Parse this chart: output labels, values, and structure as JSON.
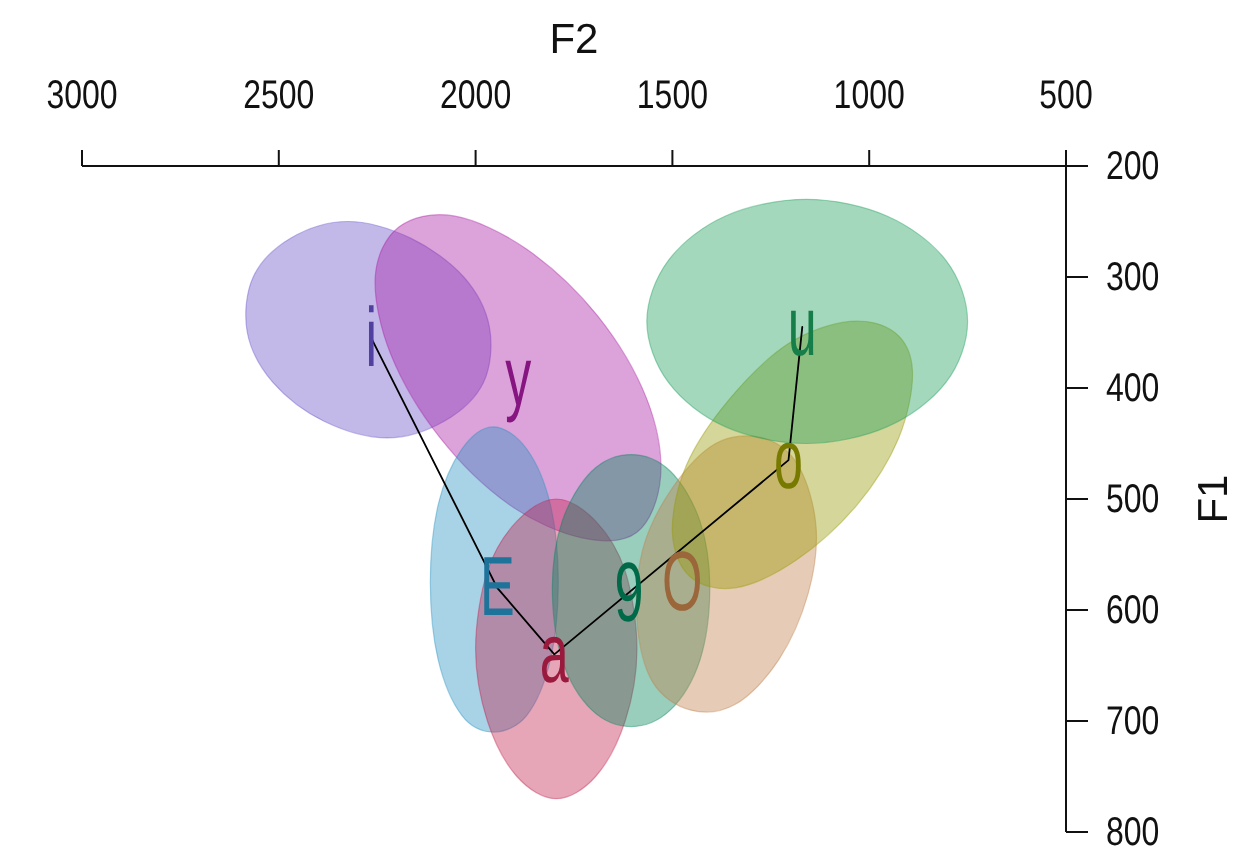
{
  "chart_data": {
    "type": "area",
    "xlabel": "F2",
    "ylabel": "F1",
    "xlim": [
      3000,
      500
    ],
    "xticks": [
      3000,
      2500,
      2000,
      1500,
      1000,
      500
    ],
    "ylim": [
      800,
      200
    ],
    "yticks": [
      200,
      300,
      400,
      500,
      600,
      700,
      800
    ],
    "series": [
      {
        "color": "#6650c8",
        "x": [
          1980,
          2080,
          2225,
          2385,
          2515,
          2580,
          2565,
          2470,
          2325,
          2165,
          2030,
          1965
        ],
        "values": [
          395,
          430,
          445,
          430,
          395,
          350,
          300,
          265,
          250,
          265,
          300,
          345
        ]
      },
      {
        "color": "#a81aa3",
        "x": [
          1590,
          1730,
          1915,
          2090,
          2215,
          2255,
          2195,
          2055,
          1870,
          1690,
          1565,
          1530
        ],
        "values": [
          530,
          535,
          505,
          445,
          370,
          300,
          255,
          245,
          275,
          335,
          410,
          480
        ]
      },
      {
        "color": "#2590c0",
        "x": [
          1790,
          1810,
          1870,
          1955,
          2035,
          2095,
          2115,
          2095,
          2035,
          1955,
          1870,
          1810
        ],
        "values": [
          575,
          645,
          695,
          710,
          695,
          645,
          575,
          505,
          455,
          435,
          455,
          505
        ]
      },
      {
        "color": "#c0204e",
        "x": [
          1590,
          1620,
          1695,
          1795,
          1895,
          1970,
          2000,
          1970,
          1895,
          1795,
          1695,
          1620
        ],
        "values": [
          635,
          700,
          750,
          770,
          750,
          700,
          635,
          565,
          520,
          500,
          520,
          565
        ]
      },
      {
        "color": "#00845a",
        "x": [
          1405,
          1430,
          1505,
          1605,
          1705,
          1780,
          1805,
          1780,
          1705,
          1605,
          1505,
          1430
        ],
        "values": [
          580,
          645,
          690,
          705,
          690,
          645,
          580,
          520,
          475,
          460,
          475,
          520
        ]
      },
      {
        "color": "#c08048",
        "x": [
          1270,
          1180,
          1135,
          1155,
          1230,
          1340,
          1455,
          1550,
          1590,
          1575,
          1500,
          1390
        ],
        "values": [
          445,
          470,
          525,
          585,
          645,
          685,
          690,
          665,
          610,
          545,
          490,
          450
        ]
      },
      {
        "color": "#969800",
        "x": [
          935,
          890,
          925,
          1030,
          1185,
          1340,
          1455,
          1500,
          1465,
          1355,
          1205,
          1050
        ],
        "values": [
          350,
          385,
          445,
          505,
          555,
          580,
          570,
          530,
          470,
          410,
          360,
          340
        ]
      },
      {
        "color": "#1b9d5a",
        "x": [
          750,
          805,
          955,
          1160,
          1365,
          1510,
          1565,
          1510,
          1365,
          1160,
          955,
          805
        ],
        "values": [
          340,
          395,
          435,
          450,
          435,
          395,
          340,
          285,
          245,
          230,
          245,
          285
        ]
      },
      {
        "type": "line",
        "color": "#000000",
        "x": [
          2265,
          1945,
          1800,
          1205,
          1170
        ],
        "values": [
          355,
          580,
          640,
          465,
          345
        ]
      }
    ],
    "annotations": [
      {
        "text": "i",
        "x": 2265,
        "y": 355
      },
      "y",
      {
        "text": "E",
        "x": 1945,
        "y": 580
      },
      {
        "text": "a",
        "x": 1800,
        "y": 640
      },
      {
        "text": "9",
        "x": 1610,
        "y": 585
      },
      {
        "text": "O",
        "x": 1475,
        "y": 575
      },
      {
        "text": "o",
        "x": 1205,
        "y": 465
      },
      {
        "text": "u",
        "x": 1170,
        "y": 345
      }
    ]
  }
}
